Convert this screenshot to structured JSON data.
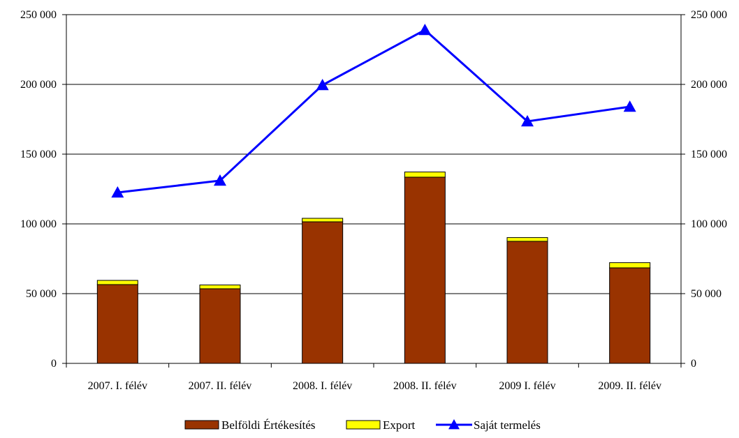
{
  "chart_data": {
    "type": "bar",
    "stacked": true,
    "categories": [
      "2007. I. félév",
      "2007. II. félév",
      "2008. I. félév",
      "2008. II. félév",
      "2009 I. félév",
      "2009. II. félév"
    ],
    "series": [
      {
        "name": "Belföldi Értékesítés",
        "kind": "bar",
        "color": "#993300",
        "values": [
          56500,
          53500,
          101500,
          133500,
          87500,
          68500
        ]
      },
      {
        "name": "Export",
        "kind": "bar",
        "color": "#ffff00",
        "values": [
          3000,
          2700,
          2500,
          3700,
          2700,
          3700
        ]
      },
      {
        "name": "Saját termelés",
        "kind": "line",
        "marker": "triangle",
        "color": "#0000ff",
        "values": [
          122500,
          131000,
          199500,
          239000,
          173500,
          184000
        ]
      }
    ],
    "ylim": [
      0,
      250000
    ],
    "y_ticks": [
      "0",
      "50 000",
      "100 000",
      "150 000",
      "200 000",
      "250 000"
    ],
    "y2_ticks": [
      "0",
      "50 000",
      "100 000",
      "150 000",
      "200 000",
      "250 000"
    ],
    "grid": true,
    "legend_position": "bottom",
    "title": "",
    "xlabel": "",
    "ylabel": ""
  }
}
